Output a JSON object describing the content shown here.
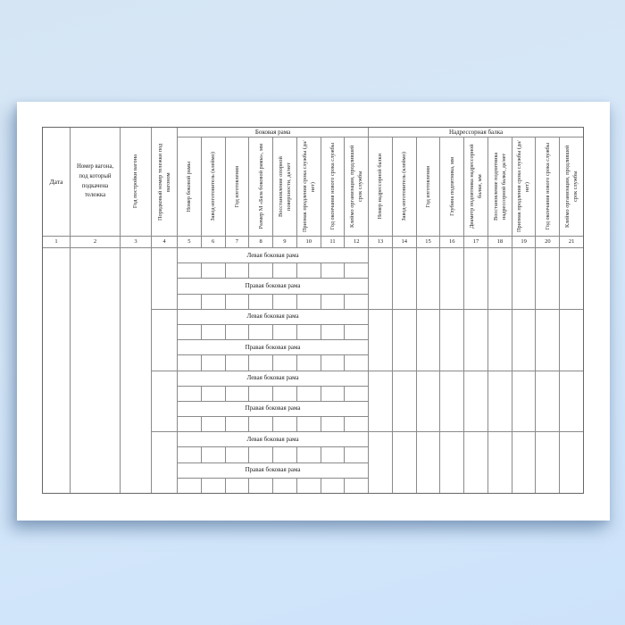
{
  "groups": [
    {
      "label": "Боковая рама"
    },
    {
      "label": "Надрессорная балка"
    }
  ],
  "columns": [
    {
      "num": "1",
      "label": "Дата"
    },
    {
      "num": "2",
      "label": "Номер вагона, под который подкачена тележка"
    },
    {
      "num": "3",
      "label": "Год постройки вагона"
    },
    {
      "num": "4",
      "label": "Порядковый номер тележки под вагоном"
    },
    {
      "num": "5",
      "label": "Номер боковой рамы"
    },
    {
      "num": "6",
      "label": "Завод-изготовитель (клеймо)"
    },
    {
      "num": "7",
      "label": "Год изготовления"
    },
    {
      "num": "8",
      "label": "Размер М «База боковой рамы», мм"
    },
    {
      "num": "9",
      "label": "Восстановление опорной поверхности, да/нет"
    },
    {
      "num": "10",
      "label": "Признак продления срока службы (да/нет)"
    },
    {
      "num": "11",
      "label": "Год окончания нового срока службы"
    },
    {
      "num": "12",
      "label": "Клеймо организации, продлившей срок службы"
    },
    {
      "num": "13",
      "label": "Номер надрессорной балки"
    },
    {
      "num": "14",
      "label": "Завод-изготовитель (клеймо)"
    },
    {
      "num": "15",
      "label": "Год изготовления"
    },
    {
      "num": "16",
      "label": "Глубина подпятника, мм"
    },
    {
      "num": "17",
      "label": "Диаметр подпятника надрессорной балки, мм"
    },
    {
      "num": "18",
      "label": "Восстановление подпятника надрессорной балки, да/нет"
    },
    {
      "num": "19",
      "label": "Признак продления срока службы (да/нет)"
    },
    {
      "num": "20",
      "label": "Год окончания нового срока службы"
    },
    {
      "num": "21",
      "label": "Клеймо организации, продлившей срок службы"
    }
  ],
  "blocks": [
    {
      "left_label": "Левая боковая рама",
      "right_label": "Правая боковая рама"
    },
    {
      "left_label": "Левая боковая рама",
      "right_label": "Правая боковая рама"
    },
    {
      "left_label": "Левая боковая рама",
      "right_label": "Правая боковая рама"
    },
    {
      "left_label": "Левая боковая рама",
      "right_label": "Правая боковая рама"
    }
  ]
}
